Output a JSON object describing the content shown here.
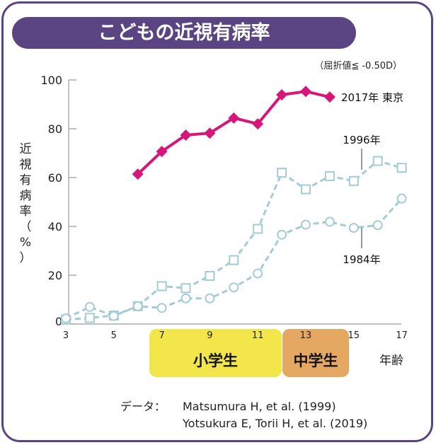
{
  "title": "こどもの近視有病率",
  "note": "（屈折値≦ -0.50D）",
  "colors": {
    "frame": "#5a4582",
    "series2017": "#d6177a",
    "series_old": "#a4ccd4",
    "elementary": "#f2e64a",
    "junior_high": "#e5a862"
  },
  "chart_data": {
    "type": "line",
    "title": "こどもの近視有病率",
    "xlabel": "年齢",
    "ylabel": "近視有病率（%）",
    "xlim": [
      3,
      17
    ],
    "ylim": [
      0,
      100
    ],
    "x_ticks": [
      3,
      5,
      7,
      9,
      11,
      13,
      15,
      17
    ],
    "y_ticks": [
      0,
      20,
      40,
      60,
      80,
      100
    ],
    "grid": false,
    "series": [
      {
        "name": "2017年 東京",
        "marker": "diamond",
        "style": "solid",
        "x": [
          6,
          7,
          8,
          9,
          10,
          11,
          12,
          13,
          14
        ],
        "values": [
          61.4,
          70.7,
          77.4,
          78.2,
          84.4,
          82.0,
          93.9,
          95.3,
          93.0
        ]
      },
      {
        "name": "1996年",
        "marker": "square",
        "style": "dashed",
        "x": [
          3,
          4,
          5,
          6,
          7,
          8,
          9,
          10,
          11,
          12,
          13,
          14,
          15,
          16,
          17
        ],
        "values": [
          1.8,
          2.5,
          3.5,
          7.3,
          15.5,
          14.7,
          19.7,
          26.2,
          39.0,
          62.0,
          55.2,
          60.6,
          58.6,
          66.8,
          64.0
        ]
      },
      {
        "name": "1984年",
        "marker": "circle",
        "style": "dashed",
        "x": [
          3,
          4,
          5,
          6,
          7,
          8,
          9,
          10,
          11,
          12,
          13,
          14,
          15,
          16,
          17
        ],
        "values": [
          2.3,
          7.0,
          3.3,
          7.3,
          6.6,
          10.5,
          10.5,
          15.0,
          20.7,
          36.6,
          40.7,
          41.9,
          39.4,
          40.5,
          51.4
        ]
      }
    ],
    "bands": [
      {
        "label": "小学生",
        "from": 7,
        "to": 12
      },
      {
        "label": "中学生",
        "from": 12,
        "to": 15
      }
    ]
  },
  "source": {
    "label": "データ：",
    "refs": [
      "Matsumura H, et al. (1999)",
      "Yotsukura E, Torii H, et al. (2019)"
    ]
  }
}
